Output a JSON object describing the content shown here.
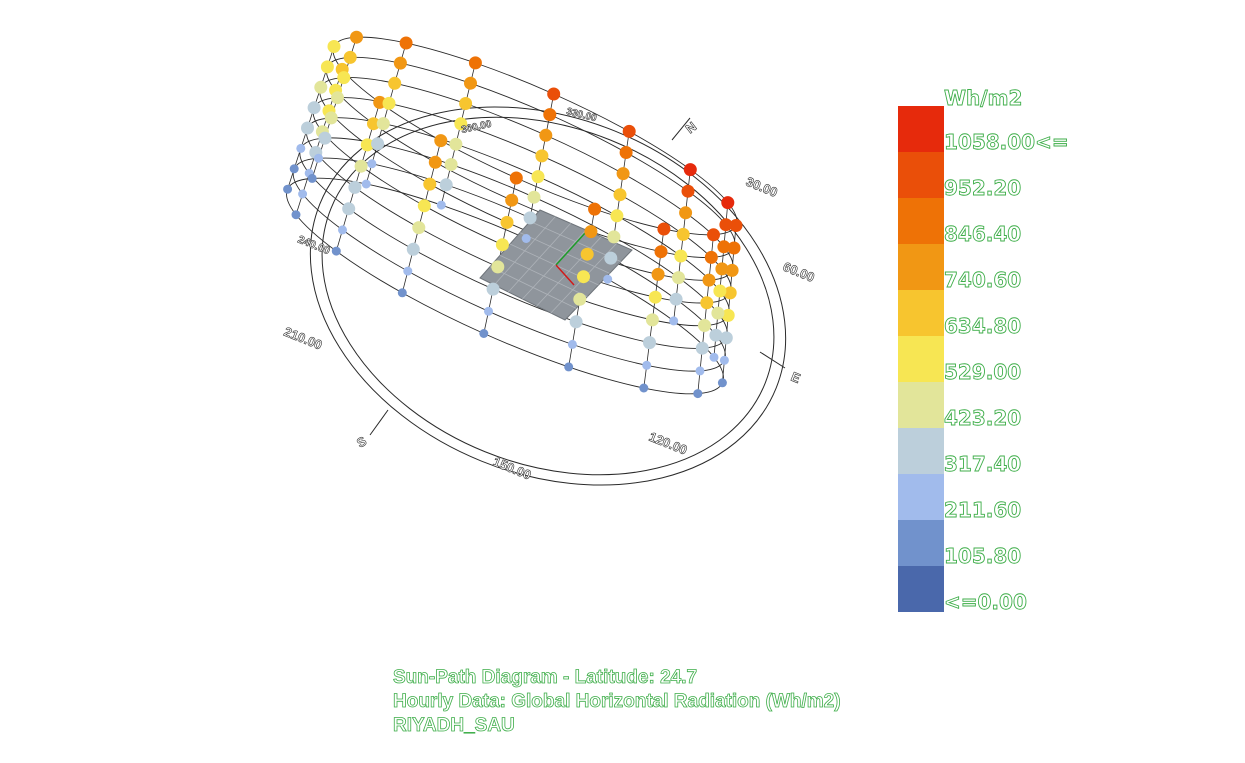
{
  "diagram": {
    "compass_labels": {
      "north": "N",
      "east": "E",
      "south": "S",
      "a30": "30.00",
      "a60": "60.00",
      "a120": "120.00",
      "a150": "150.00",
      "a210": "210.00",
      "a240": "240.00",
      "a300": "300.00",
      "a330": "330.00"
    },
    "colors": {
      "grid_line": "#2a2a2a",
      "ground_patch": "#8f959c",
      "ground_grid": "#aeb3b9"
    }
  },
  "legend": {
    "unit": "Wh/m2",
    "levels": [
      {
        "label": "1058.00<=",
        "color": "#e62a0c"
      },
      {
        "label": "952.20",
        "color": "#ea4f09"
      },
      {
        "label": "846.40",
        "color": "#ee7206"
      },
      {
        "label": "740.60",
        "color": "#f19714"
      },
      {
        "label": "634.80",
        "color": "#f7c52f"
      },
      {
        "label": "529.00",
        "color": "#f7e653"
      },
      {
        "label": "423.20",
        "color": "#e2e59a"
      },
      {
        "label": "317.40",
        "color": "#bccfdb"
      },
      {
        "label": "211.60",
        "color": "#a1bbec"
      },
      {
        "label": "105.80",
        "color": "#7192cc"
      },
      {
        "label": "<=0.00",
        "color": "#4a68ab"
      }
    ]
  },
  "caption": {
    "line1": "Sun-Path Diagram - Latitude: 24.7",
    "line2": "Hourly Data: Global Horizontal Radiation (Wh/m2)",
    "line3": "RIYADH_SAU"
  }
}
